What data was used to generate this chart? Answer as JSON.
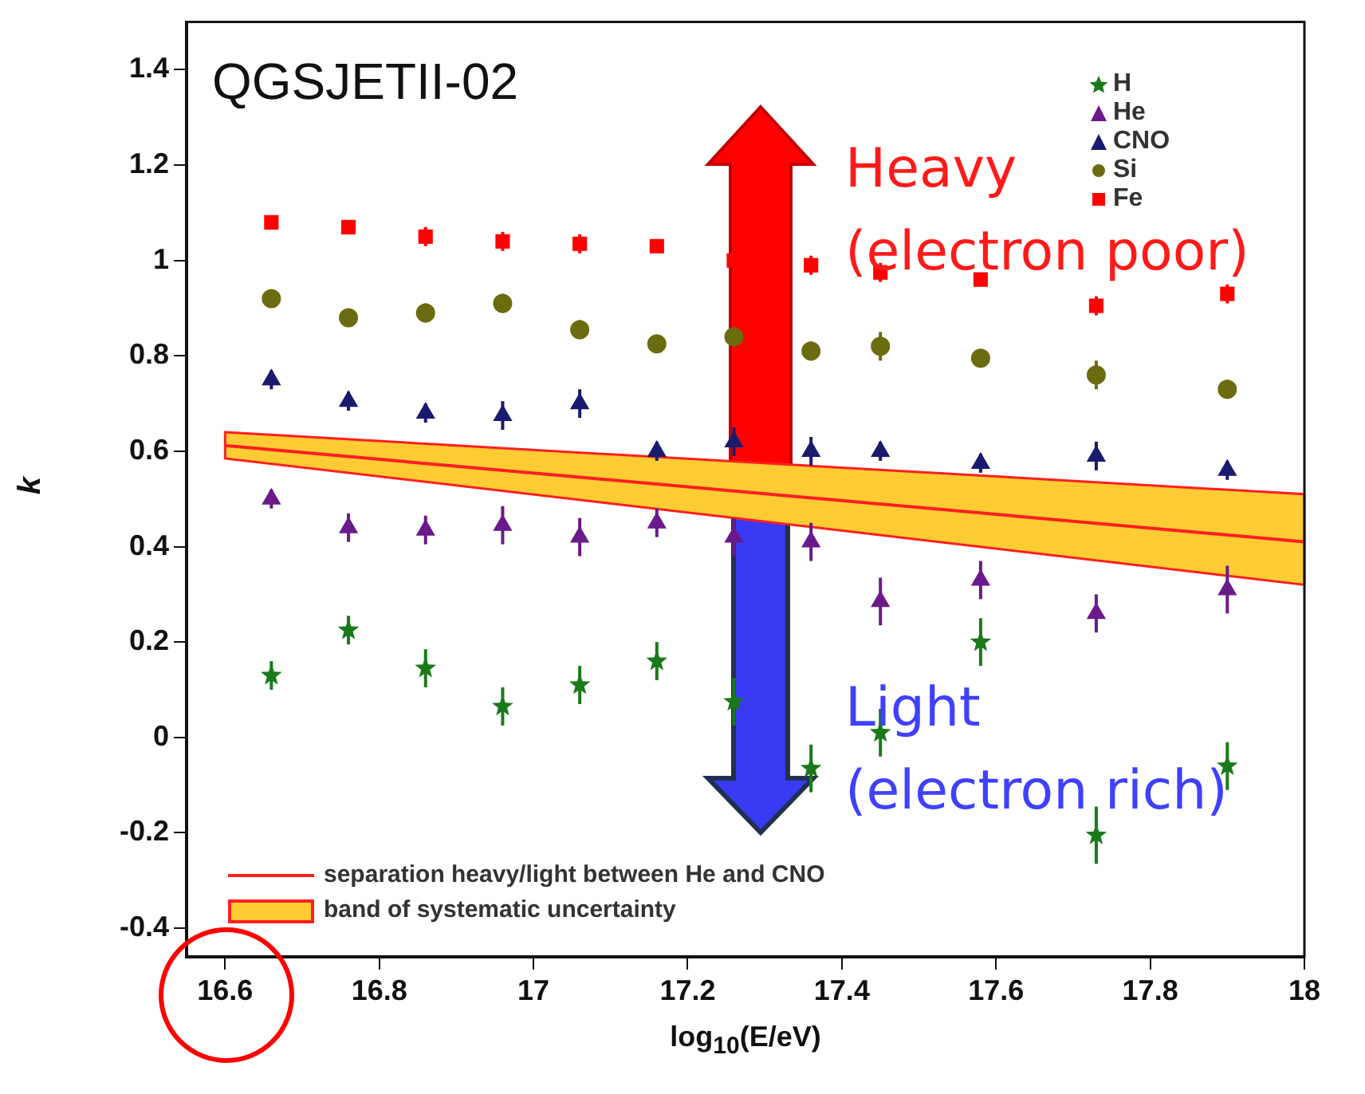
{
  "chart_data": {
    "type": "scatter",
    "title": "QGSJETII-02",
    "xlabel": "log$_{10}$(E/eV)",
    "ylabel": "k",
    "xlim": [
      16.55,
      18.0
    ],
    "xticks": [
      16.6,
      16.8,
      17,
      17.2,
      17.4,
      17.6,
      17.8,
      18
    ],
    "ylim": [
      -0.46,
      1.5
    ],
    "yticks": [
      -0.4,
      -0.2,
      0,
      0.2,
      0.4,
      0.6,
      0.8,
      1,
      1.2,
      1.4
    ],
    "x": [
      16.66,
      16.76,
      16.86,
      16.96,
      17.06,
      17.16,
      17.26,
      17.36,
      17.45,
      17.58,
      17.73,
      17.9
    ],
    "series": [
      {
        "name": "H",
        "type": "scatter",
        "marker": "star",
        "color": "#1a7a1a",
        "values": [
          0.13,
          0.225,
          0.145,
          0.065,
          0.11,
          0.16,
          0.075,
          -0.065,
          0.01,
          0.2,
          -0.205,
          -0.06
        ],
        "errors": [
          0.03,
          0.03,
          0.04,
          0.04,
          0.04,
          0.04,
          0.05,
          0.05,
          0.05,
          0.05,
          0.06,
          0.05
        ]
      },
      {
        "name": "He",
        "type": "scatter",
        "marker": "triangle",
        "color": "#6a1a8a",
        "values": [
          0.5,
          0.44,
          0.435,
          0.445,
          0.42,
          0.45,
          0.42,
          0.41,
          0.285,
          0.33,
          0.26,
          0.31
        ],
        "errors": [
          0.02,
          0.03,
          0.03,
          0.04,
          0.04,
          0.03,
          0.04,
          0.04,
          0.05,
          0.04,
          0.04,
          0.05
        ]
      },
      {
        "name": "CNO",
        "type": "scatter",
        "marker": "triangle",
        "color": "#1a1a6e",
        "values": [
          0.75,
          0.705,
          0.68,
          0.675,
          0.7,
          0.6,
          0.62,
          0.6,
          0.6,
          0.575,
          0.59,
          0.56
        ],
        "errors": [
          0.02,
          0.02,
          0.02,
          0.03,
          0.03,
          0.02,
          0.03,
          0.03,
          0.02,
          0.02,
          0.03,
          0.02
        ]
      },
      {
        "name": "Si",
        "type": "scatter",
        "marker": "circle",
        "color": "#6b6b10",
        "values": [
          0.92,
          0.88,
          0.89,
          0.91,
          0.855,
          0.825,
          0.84,
          0.81,
          0.82,
          0.795,
          0.76,
          0.73
        ],
        "errors": [
          0.01,
          0.01,
          0.02,
          0.02,
          0.02,
          0.01,
          0.02,
          0.02,
          0.03,
          0.01,
          0.03,
          0.02
        ]
      },
      {
        "name": "Fe",
        "type": "scatter",
        "marker": "square",
        "color": "#ff0000",
        "values": [
          1.08,
          1.07,
          1.05,
          1.04,
          1.035,
          1.03,
          1.0,
          0.99,
          0.975,
          0.96,
          0.905,
          0.93
        ],
        "errors": [
          0.01,
          0.01,
          0.02,
          0.02,
          0.02,
          0.01,
          0.02,
          0.02,
          0.02,
          0.01,
          0.02,
          0.02
        ]
      },
      {
        "name": "separation heavy/light between He and CNO",
        "type": "line",
        "marker": "none",
        "color": "#ff2020",
        "x": [
          16.6,
          18.0
        ],
        "values": [
          0.612,
          0.41
        ],
        "lower": [
          0.585,
          0.32
        ],
        "upper": [
          0.64,
          0.51
        ]
      }
    ],
    "annotations": [
      "band of systematic uncertainty",
      "Heavy\n(electron poor)",
      "Light\n(electron rich)"
    ],
    "legend": "top right"
  }
}
